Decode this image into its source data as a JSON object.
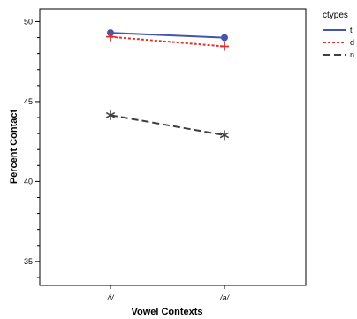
{
  "chart_data": {
    "type": "line",
    "xlabel": "Vowel Contexts",
    "ylabel": "Percent Contact",
    "categories": [
      "/i/",
      "/a/"
    ],
    "ylim": [
      33.5,
      50.8
    ],
    "yticks": [
      35,
      40,
      45,
      50
    ],
    "grid": false,
    "legend": {
      "title": "ctypes",
      "placement": "top-right outside"
    },
    "series": [
      {
        "name": "t",
        "values": [
          49.3,
          49.0
        ],
        "color": "#4356a8",
        "dash": "solid",
        "marker": "circle"
      },
      {
        "name": "d",
        "values": [
          49.05,
          48.45
        ],
        "color": "#e0322d",
        "dash": "dotted",
        "marker": "plus"
      },
      {
        "name": "n",
        "values": [
          44.15,
          42.9
        ],
        "color": "#404040",
        "dash": "dashed",
        "marker": "asterisk"
      }
    ]
  }
}
